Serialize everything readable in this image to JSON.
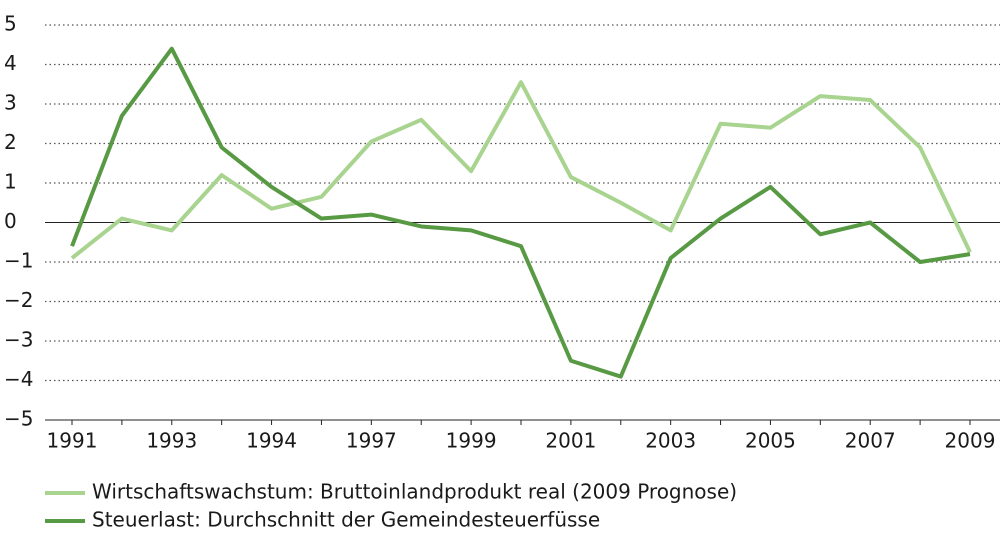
{
  "chart_data": {
    "type": "line",
    "categories": [
      "1991",
      null,
      "1993",
      null,
      "1994",
      null,
      "1997",
      null,
      "1999",
      null,
      "2001",
      null,
      "2003",
      null,
      "2005",
      null,
      "2007",
      null,
      "2009"
    ],
    "series": [
      {
        "name": "Wirtschaftswachstum: Bruttoinlandprodukt real (2009 Prognose)",
        "color": "#a8d48f",
        "values": [
          -0.9,
          0.1,
          -0.2,
          1.2,
          0.35,
          0.65,
          2.05,
          2.6,
          1.3,
          3.55,
          1.15,
          0.5,
          -0.2,
          2.5,
          2.4,
          3.2,
          3.1,
          1.9,
          -0.75
        ]
      },
      {
        "name": "Steuerlast: Durchschnitt der Gemeindesteuerfüsse",
        "color": "#579a43",
        "values": [
          -0.6,
          2.7,
          4.4,
          1.9,
          0.9,
          0.1,
          0.2,
          -0.1,
          -0.2,
          -0.6,
          -3.5,
          -3.9,
          -0.9,
          0.1,
          0.9,
          -0.3,
          0.0,
          -1.0,
          -0.8
        ]
      }
    ],
    "ylim": [
      -5,
      5
    ],
    "yticks": [
      {
        "value": -5,
        "label": "−5"
      },
      {
        "value": -4,
        "label": "−4"
      },
      {
        "value": -3,
        "label": "−3"
      },
      {
        "value": -2,
        "label": "−2"
      },
      {
        "value": -1,
        "label": "−1"
      },
      0,
      1,
      2,
      3,
      4,
      5
    ],
    "grid": true,
    "legend": "bottom-left"
  }
}
